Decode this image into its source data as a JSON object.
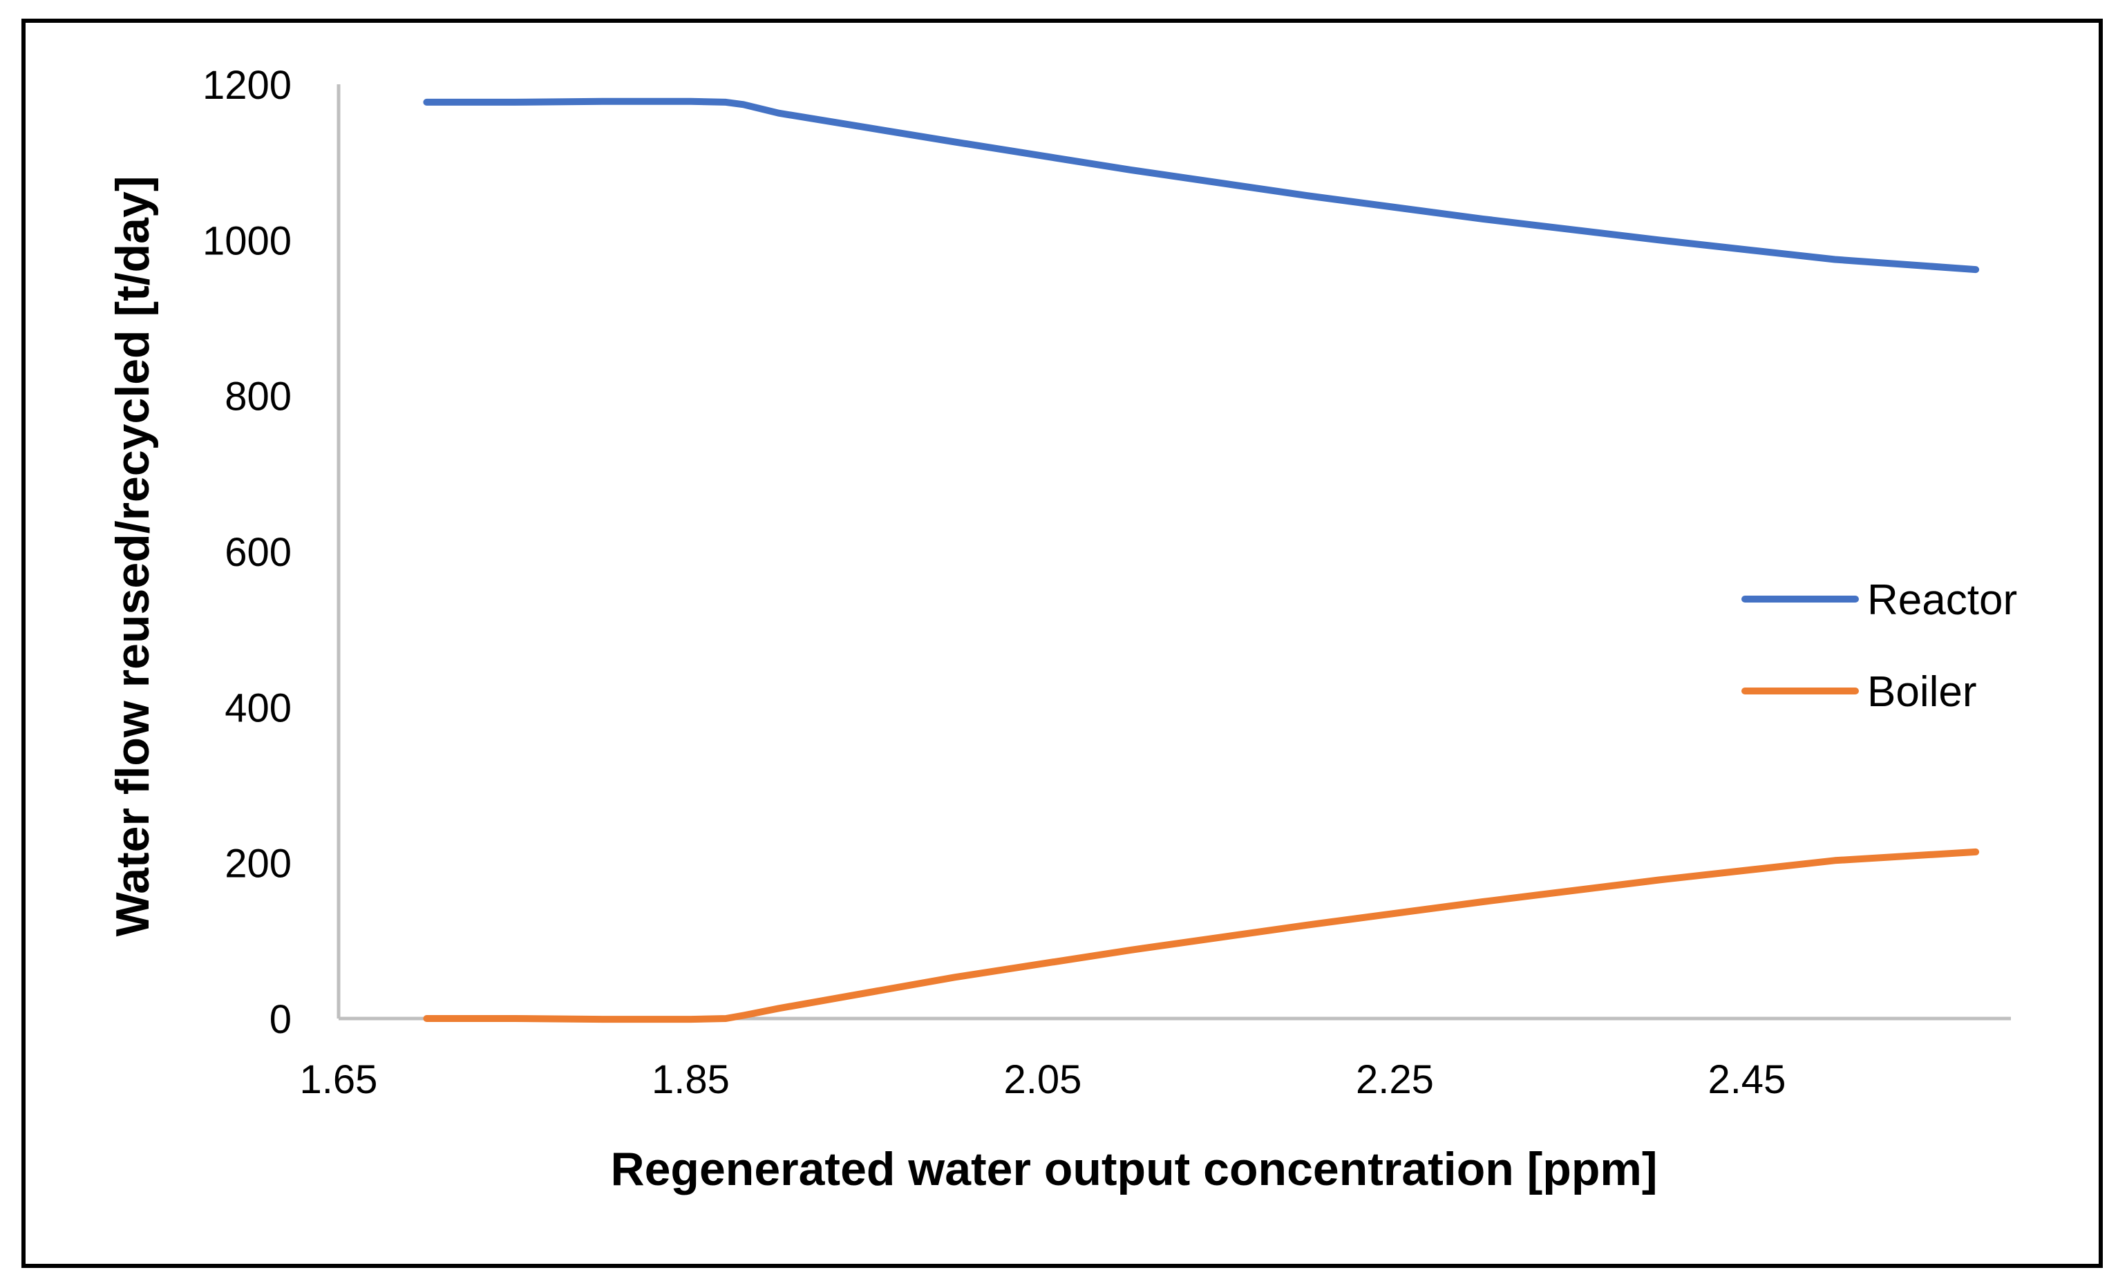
{
  "chart_data": {
    "type": "line",
    "title": "",
    "xlabel": "Regenerated water output concentration [ppm]",
    "ylabel": "Water flow reused/recycled [t/day]",
    "xlim": [
      1.65,
      2.6
    ],
    "ylim": [
      0,
      1200
    ],
    "x_ticks": [
      "1.65",
      "1.85",
      "2.05",
      "2.25",
      "2.45"
    ],
    "y_ticks": [
      "0",
      "200",
      "400",
      "600",
      "800",
      "1000",
      "1200"
    ],
    "x_tick_values": [
      1.65,
      1.85,
      2.05,
      2.25,
      2.45
    ],
    "y_tick_values": [
      0,
      200,
      400,
      600,
      800,
      1000,
      1200
    ],
    "grid": false,
    "legend_position": "right",
    "series": [
      {
        "name": "Reactor",
        "color": "#4472C4",
        "x": [
          1.7,
          1.75,
          1.8,
          1.85,
          1.87,
          1.88,
          1.9,
          2.0,
          2.1,
          2.2,
          2.3,
          2.4,
          2.5,
          2.58
        ],
        "y": [
          1177,
          1177,
          1178,
          1178,
          1177,
          1174,
          1163,
          1126,
          1090,
          1057,
          1027,
          1000,
          975,
          962
        ]
      },
      {
        "name": "Boiler",
        "color": "#ED7D31",
        "x": [
          1.7,
          1.75,
          1.8,
          1.85,
          1.87,
          1.88,
          1.9,
          2.0,
          2.1,
          2.2,
          2.3,
          2.4,
          2.5,
          2.58
        ],
        "y": [
          0,
          0,
          -1,
          -1,
          0,
          4,
          13,
          53,
          88,
          120,
          150,
          178,
          203,
          214
        ]
      }
    ]
  }
}
